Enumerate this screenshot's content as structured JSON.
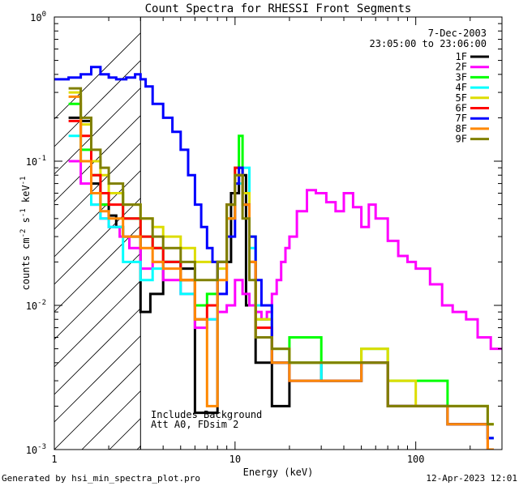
{
  "footer": {
    "generated": "Generated by hsi_min_spectra_plot.pro",
    "timestamp": "12-Apr-2023 12:01"
  },
  "chart_data": {
    "type": "line",
    "title": "Count Spectra for RHESSI Front Segments",
    "xlabel": "Energy (keV)",
    "ylabel_parts": [
      "counts cm",
      "-2",
      " s",
      "-1",
      " keV",
      "-1"
    ],
    "xscale": "log",
    "yscale": "log",
    "xlim": [
      1,
      300
    ],
    "ylim": [
      0.001,
      1
    ],
    "x_ticks": [
      {
        "v": 1,
        "label": "1"
      },
      {
        "v": 10,
        "label": "10"
      },
      {
        "v": 100,
        "label": "100"
      }
    ],
    "y_ticks": [
      {
        "v": 1,
        "base": "10",
        "exp": "0"
      },
      {
        "v": 0.1,
        "base": "10",
        "exp": "-1"
      },
      {
        "v": 0.01,
        "base": "10",
        "exp": "-2"
      },
      {
        "v": 0.001,
        "base": "10",
        "exp": "-3"
      }
    ],
    "date": "7-Dec-2003",
    "time_range": "23:05:00 to 23:06:00",
    "annotations": [
      "Includes Background",
      "Att A0, FDsim 2"
    ],
    "shaded_region": {
      "x_from": 1,
      "x_to": 3,
      "pattern": "diagonal hatching"
    },
    "legend_position": "top-right",
    "series": [
      {
        "name": "1F",
        "color": "#000000",
        "points": [
          [
            1.2,
            0.2
          ],
          [
            1.4,
            0.19
          ],
          [
            1.6,
            0.07
          ],
          [
            1.8,
            0.05
          ],
          [
            2.0,
            0.042
          ],
          [
            2.2,
            0.035
          ],
          [
            2.4,
            0.03
          ],
          [
            2.7,
            0.03
          ],
          [
            3.0,
            0.009
          ],
          [
            3.4,
            0.012
          ],
          [
            4.0,
            0.02
          ],
          [
            5.0,
            0.018
          ],
          [
            6.0,
            0.0018
          ],
          [
            8.0,
            0.02
          ],
          [
            9.5,
            0.06
          ],
          [
            10.5,
            0.08
          ],
          [
            11.5,
            0.01
          ],
          [
            13,
            0.004
          ],
          [
            16,
            0.002
          ],
          [
            20,
            0.004
          ],
          [
            30,
            0.003
          ],
          [
            50,
            0.004
          ],
          [
            70,
            0.002
          ],
          [
            100,
            0.002
          ],
          [
            150,
            0.0015
          ],
          [
            250,
            0.0012
          ]
        ]
      },
      {
        "name": "2F",
        "color": "#ff00ff",
        "points": [
          [
            1.2,
            0.1
          ],
          [
            1.4,
            0.07
          ],
          [
            1.6,
            0.05
          ],
          [
            1.8,
            0.04
          ],
          [
            2.0,
            0.035
          ],
          [
            2.3,
            0.03
          ],
          [
            2.6,
            0.025
          ],
          [
            3.0,
            0.018
          ],
          [
            3.5,
            0.02
          ],
          [
            4.0,
            0.015
          ],
          [
            5.0,
            0.012
          ],
          [
            6.0,
            0.007
          ],
          [
            7.0,
            0.008
          ],
          [
            8.0,
            0.009
          ],
          [
            9.0,
            0.01
          ],
          [
            10,
            0.015
          ],
          [
            11,
            0.012
          ],
          [
            12,
            0.01
          ],
          [
            13,
            0.009
          ],
          [
            14,
            0.008
          ],
          [
            15,
            0.009
          ],
          [
            16,
            0.012
          ],
          [
            17,
            0.015
          ],
          [
            18,
            0.02
          ],
          [
            19,
            0.025
          ],
          [
            20,
            0.03
          ],
          [
            22,
            0.045
          ],
          [
            25,
            0.063
          ],
          [
            28,
            0.06
          ],
          [
            32,
            0.052
          ],
          [
            36,
            0.045
          ],
          [
            40,
            0.06
          ],
          [
            45,
            0.048
          ],
          [
            50,
            0.035
          ],
          [
            55,
            0.05
          ],
          [
            60,
            0.04
          ],
          [
            70,
            0.028
          ],
          [
            80,
            0.022
          ],
          [
            90,
            0.02
          ],
          [
            100,
            0.018
          ],
          [
            120,
            0.014
          ],
          [
            140,
            0.01
          ],
          [
            160,
            0.009
          ],
          [
            190,
            0.008
          ],
          [
            220,
            0.006
          ],
          [
            260,
            0.005
          ],
          [
            300,
            0.005
          ]
        ]
      },
      {
        "name": "3F",
        "color": "#00ff00",
        "points": [
          [
            1.2,
            0.25
          ],
          [
            1.4,
            0.12
          ],
          [
            1.6,
            0.08
          ],
          [
            1.8,
            0.05
          ],
          [
            2.0,
            0.06
          ],
          [
            2.4,
            0.04
          ],
          [
            3.0,
            0.03
          ],
          [
            3.5,
            0.025
          ],
          [
            4.0,
            0.02
          ],
          [
            5.0,
            0.015
          ],
          [
            6.0,
            0.01
          ],
          [
            7.0,
            0.012
          ],
          [
            8.0,
            0.02
          ],
          [
            9.0,
            0.05
          ],
          [
            10,
            0.09
          ],
          [
            10.5,
            0.15
          ],
          [
            11,
            0.06
          ],
          [
            12,
            0.03
          ],
          [
            13,
            0.008
          ],
          [
            16,
            0.004
          ],
          [
            20,
            0.006
          ],
          [
            30,
            0.004
          ],
          [
            50,
            0.005
          ],
          [
            70,
            0.003
          ],
          [
            100,
            0.003
          ],
          [
            150,
            0.002
          ],
          [
            250,
            0.0015
          ]
        ]
      },
      {
        "name": "4F",
        "color": "#00ffff",
        "points": [
          [
            1.2,
            0.15
          ],
          [
            1.4,
            0.1
          ],
          [
            1.6,
            0.05
          ],
          [
            1.8,
            0.04
          ],
          [
            2.0,
            0.035
          ],
          [
            2.4,
            0.02
          ],
          [
            3.0,
            0.015
          ],
          [
            3.5,
            0.018
          ],
          [
            4.0,
            0.02
          ],
          [
            5.0,
            0.012
          ],
          [
            6.0,
            0.008
          ],
          [
            8.0,
            0.02
          ],
          [
            9.0,
            0.04
          ],
          [
            10,
            0.07
          ],
          [
            11,
            0.09
          ],
          [
            12,
            0.025
          ],
          [
            13,
            0.01
          ],
          [
            16,
            0.005
          ],
          [
            20,
            0.004
          ],
          [
            30,
            0.003
          ],
          [
            50,
            0.004
          ],
          [
            70,
            0.002
          ],
          [
            100,
            0.002
          ],
          [
            150,
            0.0015
          ],
          [
            250,
            0.0012
          ]
        ]
      },
      {
        "name": "5F",
        "color": "#dddd00",
        "points": [
          [
            1.2,
            0.3
          ],
          [
            1.4,
            0.18
          ],
          [
            1.6,
            0.1
          ],
          [
            1.8,
            0.08
          ],
          [
            2.0,
            0.06
          ],
          [
            2.4,
            0.05
          ],
          [
            3.0,
            0.04
          ],
          [
            3.5,
            0.035
          ],
          [
            4.0,
            0.03
          ],
          [
            5.0,
            0.025
          ],
          [
            6.0,
            0.02
          ],
          [
            8.0,
            0.018
          ],
          [
            9.0,
            0.04
          ],
          [
            10,
            0.08
          ],
          [
            11,
            0.06
          ],
          [
            12,
            0.02
          ],
          [
            13,
            0.008
          ],
          [
            16,
            0.005
          ],
          [
            20,
            0.004
          ],
          [
            30,
            0.004
          ],
          [
            50,
            0.005
          ],
          [
            70,
            0.003
          ],
          [
            100,
            0.002
          ],
          [
            150,
            0.002
          ],
          [
            250,
            0.0015
          ]
        ]
      },
      {
        "name": "6F",
        "color": "#ff0000",
        "points": [
          [
            1.2,
            0.19
          ],
          [
            1.4,
            0.15
          ],
          [
            1.6,
            0.08
          ],
          [
            1.8,
            0.06
          ],
          [
            2.0,
            0.05
          ],
          [
            2.4,
            0.04
          ],
          [
            3.0,
            0.03
          ],
          [
            3.5,
            0.025
          ],
          [
            4.0,
            0.02
          ],
          [
            5.0,
            0.015
          ],
          [
            6.0,
            0.008
          ],
          [
            7.0,
            0.01
          ],
          [
            8.0,
            0.02
          ],
          [
            9.0,
            0.05
          ],
          [
            10,
            0.09
          ],
          [
            11,
            0.05
          ],
          [
            12,
            0.02
          ],
          [
            13,
            0.007
          ],
          [
            16,
            0.004
          ],
          [
            20,
            0.003
          ],
          [
            30,
            0.003
          ],
          [
            50,
            0.004
          ],
          [
            70,
            0.002
          ],
          [
            100,
            0.002
          ],
          [
            150,
            0.0015
          ],
          [
            250,
            0.001
          ]
        ]
      },
      {
        "name": "7F",
        "color": "#0000ff",
        "points": [
          [
            1.0,
            0.37
          ],
          [
            1.2,
            0.38
          ],
          [
            1.4,
            0.4
          ],
          [
            1.6,
            0.45
          ],
          [
            1.8,
            0.4
          ],
          [
            2.0,
            0.38
          ],
          [
            2.2,
            0.37
          ],
          [
            2.5,
            0.38
          ],
          [
            2.8,
            0.4
          ],
          [
            3.0,
            0.37
          ],
          [
            3.2,
            0.33
          ],
          [
            3.5,
            0.25
          ],
          [
            4.0,
            0.2
          ],
          [
            4.5,
            0.16
          ],
          [
            5.0,
            0.12
          ],
          [
            5.5,
            0.08
          ],
          [
            6.0,
            0.05
          ],
          [
            6.5,
            0.035
          ],
          [
            7.0,
            0.025
          ],
          [
            7.5,
            0.02
          ],
          [
            8.0,
            0.012
          ],
          [
            9.0,
            0.03
          ],
          [
            10,
            0.07
          ],
          [
            10.5,
            0.09
          ],
          [
            11,
            0.05
          ],
          [
            12,
            0.03
          ],
          [
            13,
            0.015
          ],
          [
            14,
            0.01
          ],
          [
            16,
            0.004
          ],
          [
            20,
            0.003
          ],
          [
            30,
            0.003
          ],
          [
            50,
            0.004
          ],
          [
            70,
            0.002
          ],
          [
            100,
            0.002
          ],
          [
            150,
            0.0015
          ],
          [
            250,
            0.0012
          ]
        ]
      },
      {
        "name": "8F",
        "color": "#ff8800",
        "points": [
          [
            1.2,
            0.28
          ],
          [
            1.4,
            0.1
          ],
          [
            1.6,
            0.06
          ],
          [
            1.8,
            0.045
          ],
          [
            2.0,
            0.04
          ],
          [
            2.4,
            0.03
          ],
          [
            3.0,
            0.025
          ],
          [
            3.5,
            0.02
          ],
          [
            4.0,
            0.018
          ],
          [
            5.0,
            0.015
          ],
          [
            6.0,
            0.008
          ],
          [
            7.0,
            0.002
          ],
          [
            8.0,
            0.015
          ],
          [
            9.0,
            0.04
          ],
          [
            10,
            0.08
          ],
          [
            11,
            0.05
          ],
          [
            12,
            0.02
          ],
          [
            13,
            0.006
          ],
          [
            16,
            0.004
          ],
          [
            20,
            0.003
          ],
          [
            30,
            0.003
          ],
          [
            50,
            0.004
          ],
          [
            70,
            0.002
          ],
          [
            100,
            0.002
          ],
          [
            150,
            0.0015
          ],
          [
            250,
            0.001
          ]
        ]
      },
      {
        "name": "9F",
        "color": "#808000",
        "points": [
          [
            1.2,
            0.32
          ],
          [
            1.4,
            0.2
          ],
          [
            1.6,
            0.12
          ],
          [
            1.8,
            0.09
          ],
          [
            2.0,
            0.07
          ],
          [
            2.4,
            0.05
          ],
          [
            3.0,
            0.04
          ],
          [
            3.5,
            0.03
          ],
          [
            4.0,
            0.025
          ],
          [
            5.0,
            0.02
          ],
          [
            6.0,
            0.015
          ],
          [
            8.0,
            0.02
          ],
          [
            9.0,
            0.05
          ],
          [
            10,
            0.08
          ],
          [
            11,
            0.04
          ],
          [
            12,
            0.015
          ],
          [
            13,
            0.006
          ],
          [
            16,
            0.005
          ],
          [
            20,
            0.004
          ],
          [
            30,
            0.004
          ],
          [
            50,
            0.004
          ],
          [
            70,
            0.002
          ],
          [
            100,
            0.002
          ],
          [
            150,
            0.002
          ],
          [
            250,
            0.0015
          ]
        ]
      }
    ]
  }
}
